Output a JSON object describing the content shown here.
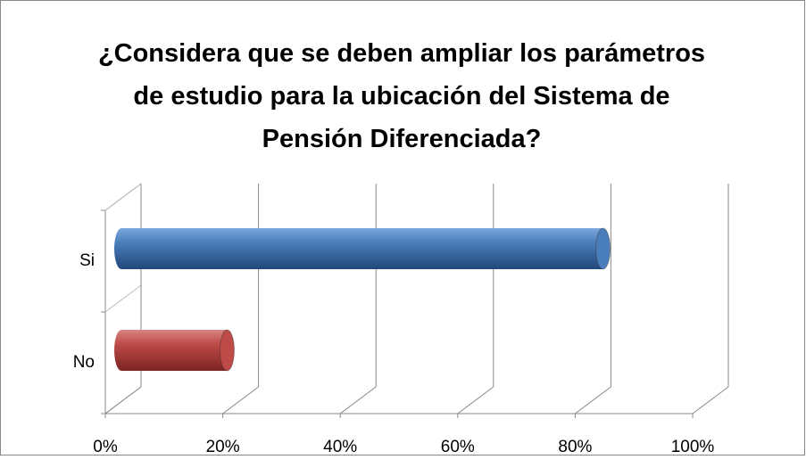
{
  "chart_data": {
    "type": "bar3d",
    "title": "¿Considera que se deben ampliar los parámetros de estudio para la ubicación del Sistema de Pensión Diferenciada?",
    "categories": [
      "Si",
      "No"
    ],
    "values": [
      82,
      18
    ],
    "colors": [
      "#4a7ebb",
      "#be4b48"
    ],
    "xlim": [
      0,
      100
    ],
    "xticks": [
      {
        "value": 0,
        "label": "0%"
      },
      {
        "value": 20,
        "label": "20%"
      },
      {
        "value": 40,
        "label": "40%"
      },
      {
        "value": 60,
        "label": "60%"
      },
      {
        "value": 80,
        "label": "80%"
      },
      {
        "value": 100,
        "label": "100%"
      }
    ],
    "grid": true
  }
}
